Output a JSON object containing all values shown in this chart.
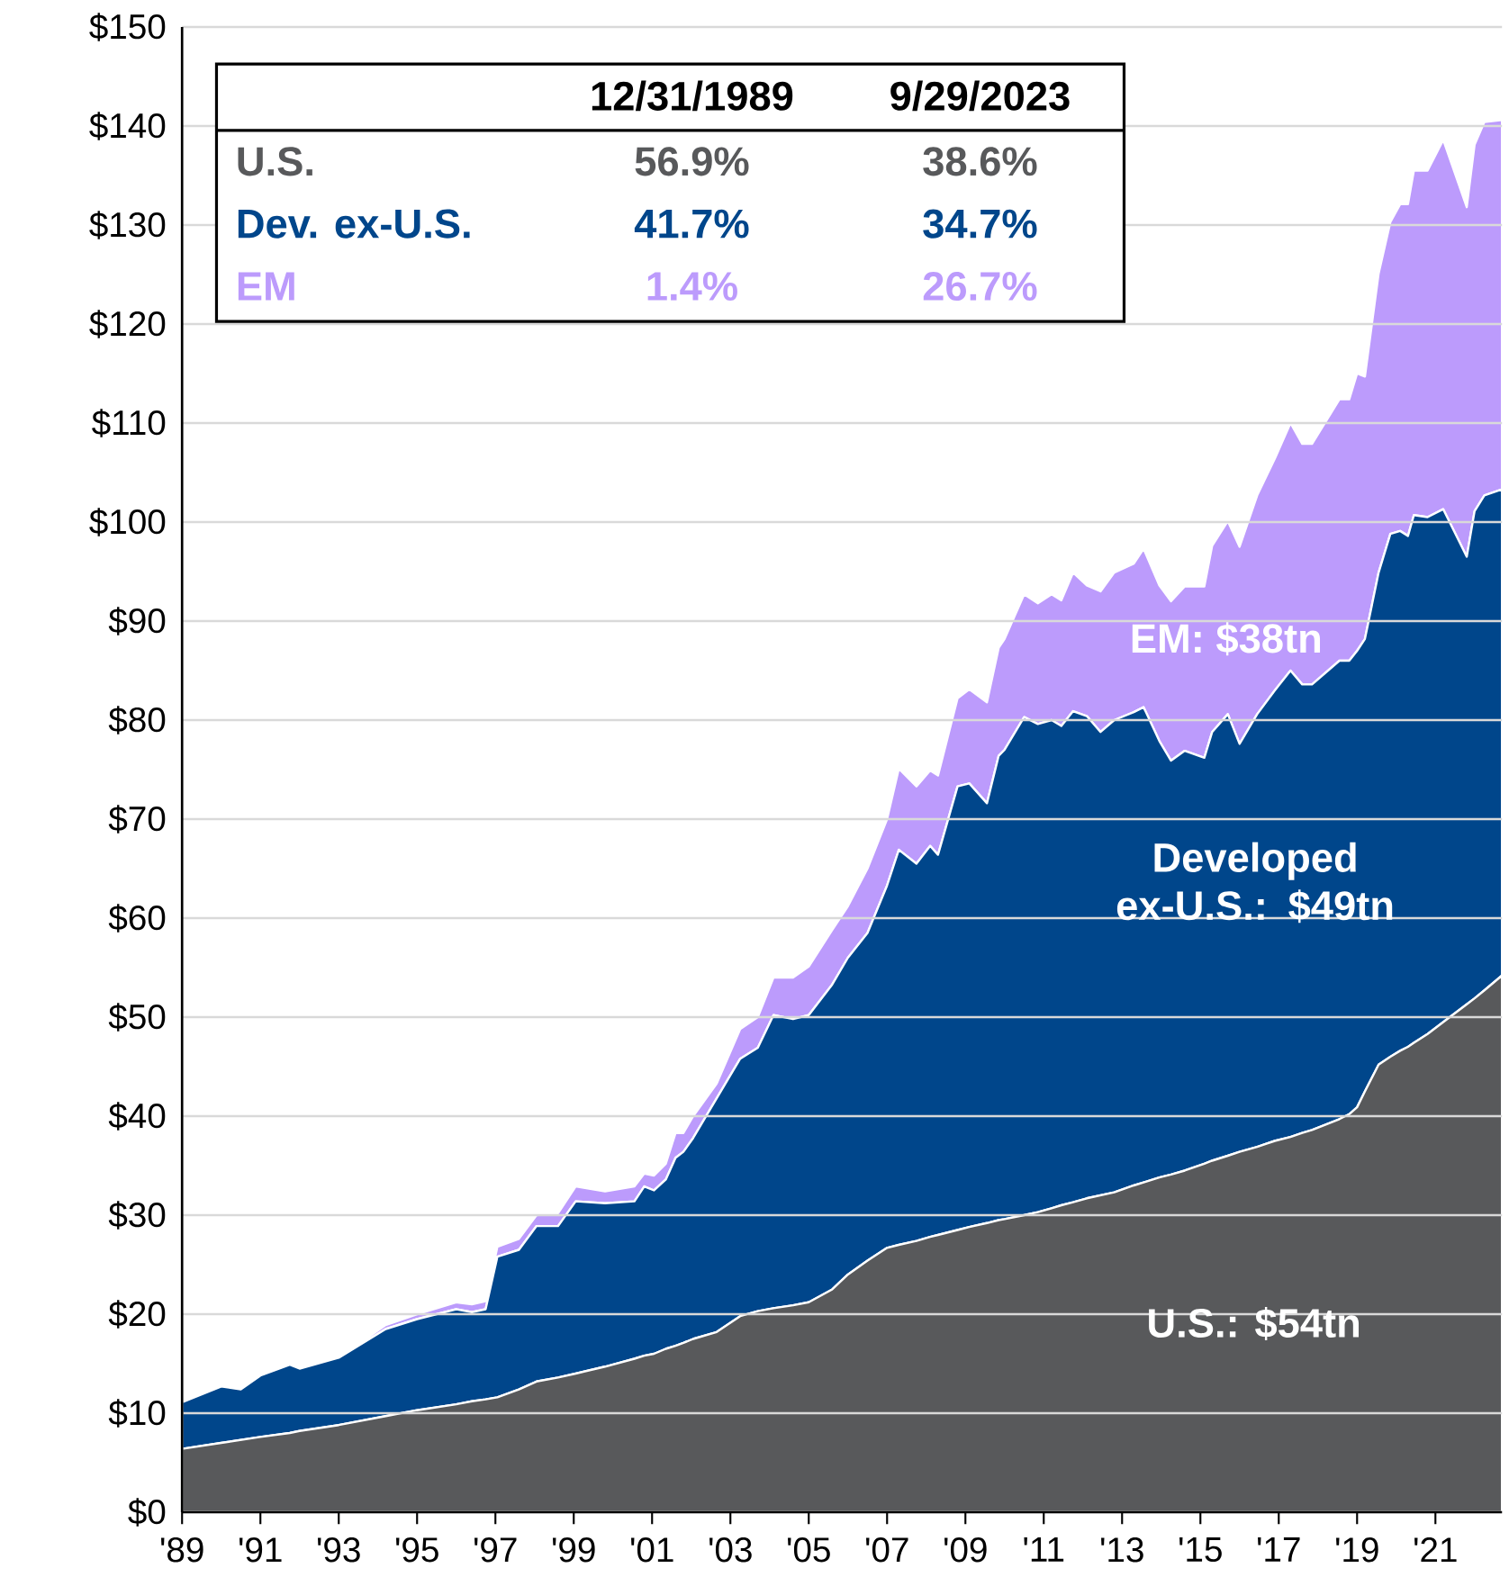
{
  "chart_data": {
    "type": "area",
    "stacked": true,
    "x": [
      1989.0,
      1990.0,
      1990.5,
      1991.0,
      1991.75,
      1992.0,
      1993.0,
      1994.2,
      1995.0,
      1996.0,
      1996.4,
      1996.75,
      1997.05,
      1997.6,
      1998.05,
      1998.6,
      1999.05,
      1999.8,
      2000.55,
      2000.8,
      2001.05,
      2001.35,
      2001.6,
      2001.8,
      2002.05,
      2002.65,
      2003.25,
      2003.7,
      2004.1,
      2004.6,
      2005.0,
      2005.6,
      2006.0,
      2006.5,
      2007.0,
      2007.3,
      2007.75,
      2008.1,
      2008.3,
      2008.8,
      2009.1,
      2009.55,
      2009.85,
      2010.0,
      2010.5,
      2010.85,
      2011.2,
      2011.45,
      2011.75,
      2012.1,
      2012.45,
      2012.8,
      2013.3,
      2013.55,
      2013.95,
      2014.25,
      2014.6,
      2015.1,
      2015.3,
      2015.7,
      2016.0,
      2016.45,
      2016.9,
      2017.3,
      2017.6,
      2017.85,
      2018.55,
      2018.8,
      2019.0,
      2019.2,
      2019.55,
      2019.85,
      2020.1,
      2020.3,
      2020.45,
      2020.8,
      2021.2,
      2021.8,
      2022.0,
      2022.25,
      2022.7
    ],
    "series": [
      {
        "color": "#58595b",
        "values": [
          6.4,
          7.0,
          7.3,
          7.6,
          8.0,
          8.2,
          8.8,
          9.7,
          10.3,
          10.9,
          11.2,
          11.4,
          11.6,
          12.4,
          13.2,
          13.6,
          14.0,
          14.7,
          15.5,
          15.8,
          16.0,
          16.5,
          16.8,
          17.1,
          17.5,
          18.2,
          19.8,
          20.3,
          20.6,
          20.9,
          21.2,
          22.5,
          24.0,
          25.4,
          26.7,
          27.0,
          27.4,
          27.8,
          28.0,
          28.5,
          28.8,
          29.2,
          29.5,
          29.6,
          30.0,
          30.3,
          30.7,
          31.0,
          31.3,
          31.7,
          32.0,
          32.3,
          33.0,
          33.3,
          33.8,
          34.1,
          34.5,
          35.2,
          35.5,
          36.0,
          36.4,
          36.9,
          37.5,
          37.9,
          38.3,
          38.6,
          39.7,
          40.2,
          40.9,
          42.5,
          45.2,
          46.0,
          46.6,
          47.0,
          47.4,
          48.3,
          49.5,
          51.3,
          51.9,
          52.7,
          54.2
        ]
      },
      {
        "color": "#00468b",
        "values": [
          4.7,
          5.7,
          5.1,
          6.2,
          6.9,
          6.3,
          6.8,
          8.8,
          9.2,
          9.6,
          9.0,
          9.1,
          14.2,
          14.1,
          15.7,
          15.3,
          17.4,
          16.5,
          15.9,
          17.1,
          16.5,
          17.1,
          19.0,
          19.3,
          20.3,
          23.6,
          26.0,
          26.6,
          29.6,
          28.9,
          29.0,
          30.8,
          32.0,
          33.1,
          36.6,
          39.9,
          38.1,
          39.5,
          38.4,
          44.8,
          44.8,
          42.4,
          46.9,
          47.4,
          50.3,
          49.3,
          49.3,
          48.4,
          49.6,
          48.7,
          46.8,
          47.7,
          47.8,
          48.0,
          44.1,
          41.8,
          42.4,
          41.0,
          43.3,
          44.6,
          41.2,
          43.7,
          45.5,
          47.1,
          45.3,
          45.0,
          46.3,
          45.8,
          46.1,
          45.7,
          49.7,
          52.8,
          52.5,
          51.6,
          53.3,
          52.2,
          51.8,
          45.2,
          49.2,
          50.0,
          49.1
        ]
      },
      {
        "color": "#bc9bfc",
        "values": [
          0,
          0,
          0,
          0,
          0,
          0,
          0,
          0.4,
          0.5,
          0.7,
          0.8,
          0.8,
          1.0,
          1.1,
          1.1,
          1.3,
          1.5,
          1.2,
          1.5,
          1.3,
          1.5,
          1.6,
          2.5,
          1.9,
          2.2,
          1.5,
          3.0,
          3.1,
          3.8,
          4.2,
          4.9,
          5.5,
          5.2,
          6.5,
          6.7,
          8.2,
          7.8,
          7.6,
          8.0,
          8.9,
          9.5,
          10.2,
          10.9,
          11.2,
          12.4,
          12.2,
          12.7,
          12.7,
          14.0,
          13.2,
          14.2,
          14.9,
          15.0,
          16.0,
          15.7,
          16.1,
          16.6,
          17.3,
          18.8,
          19.5,
          19.9,
          22.1,
          23.4,
          25.0,
          24.3,
          24.3,
          26.4,
          26.4,
          28.0,
          26.5,
          30.2,
          31.5,
          33.0,
          33.5,
          34.8,
          35.0,
          37.3,
          35.3,
          37.0,
          37.7,
          37.3
        ]
      }
    ],
    "xlim": [
      1989.0,
      2022.7
    ],
    "xticks": [
      {
        "value": 1989,
        "label": "'89"
      },
      {
        "value": 1991,
        "label": "'91"
      },
      {
        "value": 1993,
        "label": "'93"
      },
      {
        "value": 1995,
        "label": "'95"
      },
      {
        "value": 1997,
        "label": "'97"
      },
      {
        "value": 1999,
        "label": "'99"
      },
      {
        "value": 2001,
        "label": "'01"
      },
      {
        "value": 2003,
        "label": "'03"
      },
      {
        "value": 2005,
        "label": "'05"
      },
      {
        "value": 2007,
        "label": "'07"
      },
      {
        "value": 2009,
        "label": "'09"
      },
      {
        "value": 2011,
        "label": "'11"
      },
      {
        "value": 2013,
        "label": "'13"
      },
      {
        "value": 2015,
        "label": "'15"
      },
      {
        "value": 2017,
        "label": "'17"
      },
      {
        "value": 2019,
        "label": "'19"
      },
      {
        "value": 2021,
        "label": "'21"
      }
    ],
    "ylim": [
      0,
      150
    ],
    "yticks": [
      {
        "value": 0,
        "label": "$0"
      },
      {
        "value": 10,
        "label": "$10"
      },
      {
        "value": 20,
        "label": "$20"
      },
      {
        "value": 30,
        "label": "$30"
      },
      {
        "value": 40,
        "label": "$40"
      },
      {
        "value": 50,
        "label": "$50"
      },
      {
        "value": 60,
        "label": "$60"
      },
      {
        "value": 70,
        "label": "$70"
      },
      {
        "value": 80,
        "label": "$80"
      },
      {
        "value": 90,
        "label": "$90"
      },
      {
        "value": 100,
        "label": "$100"
      },
      {
        "value": 110,
        "label": "$110"
      },
      {
        "value": 120,
        "label": "$120"
      },
      {
        "value": 130,
        "label": "$130"
      },
      {
        "value": 140,
        "label": "$140"
      },
      {
        "value": 150,
        "label": "$150"
      }
    ],
    "grid": "y",
    "annotations": [
      "12/31/1989",
      "9/29/2023",
      "U.S.",
      "56.9%",
      "38.6%",
      "Dev. ex-U.S.",
      "41.7%",
      "34.7%",
      "EM",
      "1.4%",
      "26.7%",
      "EM: $38tn",
      "Developed ex-U.S.: $49tn",
      "U.S.: $54tn"
    ]
  }
}
